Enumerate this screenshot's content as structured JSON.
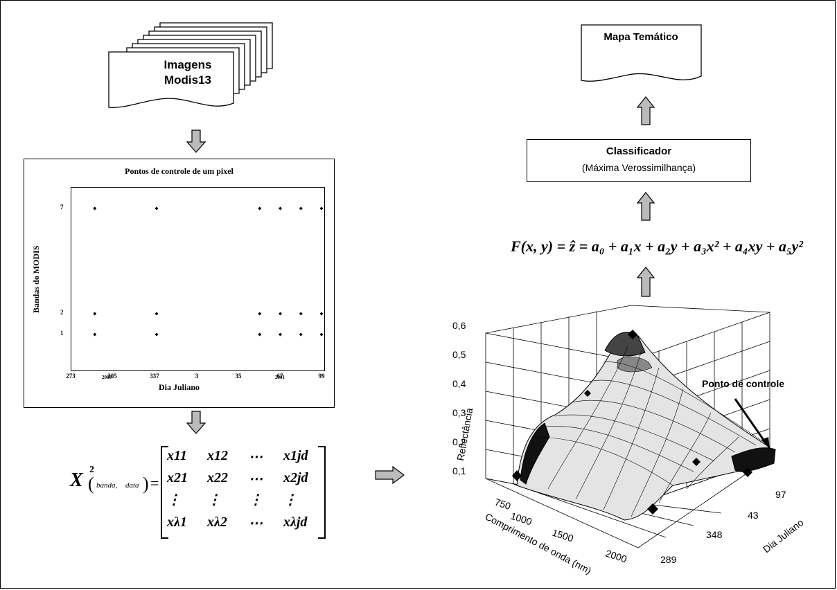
{
  "source_images": {
    "label_line1": "Imagens",
    "label_line2": "Modis13"
  },
  "control_chart": {
    "title": "Pontos de controle de um pixel",
    "xlabel": "Dia Juliano",
    "ylabel": "Bandas do MODIS",
    "xticks": [
      "273",
      "305",
      "337",
      "3",
      "35",
      "67",
      "99"
    ],
    "year_labels": [
      "2000",
      "2001"
    ],
    "yticks": [
      "1",
      "2",
      "7"
    ]
  },
  "chart_data": {
    "type": "scatter",
    "title": "Pontos de controle de um pixel",
    "xlabel": "Dia Juliano",
    "ylabel": "Bandas do MODIS",
    "x_ticks": [
      "273",
      "305",
      "337",
      "3",
      "35",
      "67",
      "99"
    ],
    "points": [
      {
        "x": "289",
        "y": 1
      },
      {
        "x": "289",
        "y": 2
      },
      {
        "x": "289",
        "y": 7
      },
      {
        "x": "337",
        "y": 1
      },
      {
        "x": "337",
        "y": 2
      },
      {
        "x": "337",
        "y": 7
      },
      {
        "x": "51",
        "y": 1
      },
      {
        "x": "51",
        "y": 2
      },
      {
        "x": "51",
        "y": 7
      },
      {
        "x": "67",
        "y": 1
      },
      {
        "x": "67",
        "y": 2
      },
      {
        "x": "67",
        "y": 7
      },
      {
        "x": "83",
        "y": 1
      },
      {
        "x": "83",
        "y": 2
      },
      {
        "x": "83",
        "y": 7
      },
      {
        "x": "99",
        "y": 1
      },
      {
        "x": "99",
        "y": 2
      },
      {
        "x": "99",
        "y": 7
      }
    ]
  },
  "matrix": {
    "lhs_var": "X",
    "lhs_sup": "2",
    "lhs_sub1": "banda,",
    "lhs_sub2": "data",
    "rows": [
      [
        "x11",
        "x12",
        "⋯",
        "x1jd"
      ],
      [
        "x21",
        "x22",
        "⋯",
        "x2jd"
      ],
      [
        "⋮",
        "⋮",
        "⋮",
        "⋮"
      ],
      [
        "xλ1",
        "xλ2",
        "⋯",
        "xλjd"
      ]
    ]
  },
  "thematic_map": {
    "label": "Mapa Temático"
  },
  "classifier": {
    "title": "Classificador",
    "subtitle": "(Máxima Verossimilhança)"
  },
  "formula": {
    "text": "F(x, y) = ẑ = a₀ + a₁x + a₂y + a₃x² + a₄xy + a₅y²"
  },
  "surface_chart": {
    "zlabel": "Reflectância",
    "xlabel": "Comprimento de onda (nm)",
    "ylabel": "Dia Juliano",
    "zticks": [
      "0,1",
      "0,2",
      "0,3",
      "0,4",
      "0,5",
      "0,6"
    ],
    "xticks": [
      "750",
      "1000",
      "1500",
      "2000"
    ],
    "yticks": [
      "97",
      "43",
      "348",
      "289"
    ],
    "annotation": "Ponto de controle"
  }
}
